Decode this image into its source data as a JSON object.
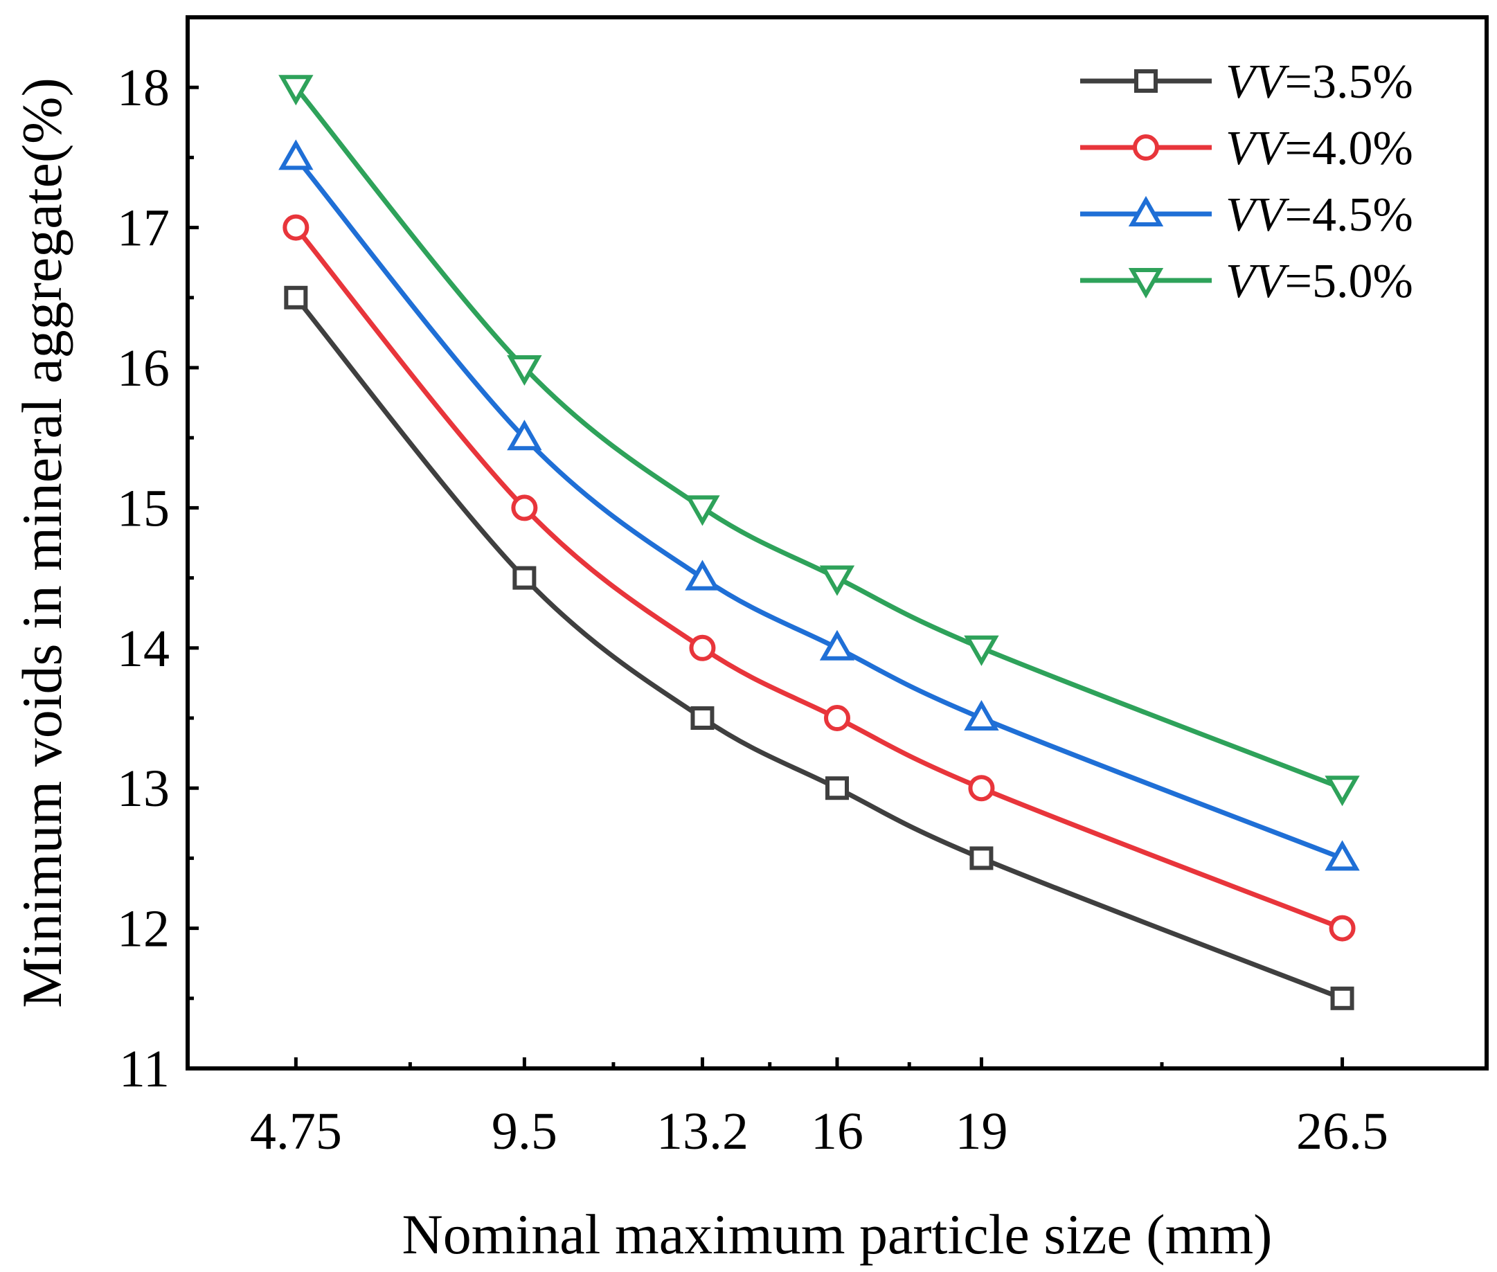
{
  "chart_data": {
    "type": "line",
    "title": "",
    "xlabel": "Nominal maximum particle size (mm)",
    "ylabel": "Minimum voids in mineral aggregate(%)",
    "x": [
      4.75,
      9.5,
      13.2,
      16,
      19,
      26.5
    ],
    "x_tick_labels": [
      "4.75",
      "9.5",
      "13.2",
      "16",
      "19",
      "26.5"
    ],
    "xlim": [
      2.5,
      29.5
    ],
    "ylim": [
      11,
      18.5
    ],
    "y_ticks": [
      11,
      12,
      13,
      14,
      15,
      16,
      17,
      18
    ],
    "y_tick_labels": [
      "11",
      "12",
      "13",
      "14",
      "15",
      "16",
      "17",
      "18"
    ],
    "grid": false,
    "legend_position": "top-right",
    "series": [
      {
        "name": "VV=3.5%",
        "name_prefix": "VV",
        "name_suffix": "=3.5%",
        "marker": "square",
        "color": "#3f3f3f",
        "values": [
          16.5,
          14.5,
          13.5,
          13.0,
          12.5,
          11.5
        ]
      },
      {
        "name": "VV=4.0%",
        "name_prefix": "VV",
        "name_suffix": "=4.0%",
        "marker": "circle",
        "color": "#e8353b",
        "values": [
          17.0,
          15.0,
          14.0,
          13.5,
          13.0,
          12.0
        ]
      },
      {
        "name": "VV=4.5%",
        "name_prefix": "VV",
        "name_suffix": "=4.5%",
        "marker": "triangle-up",
        "color": "#1f6fd6",
        "values": [
          17.5,
          15.5,
          14.5,
          14.0,
          13.5,
          12.5
        ]
      },
      {
        "name": "VV=5.0%",
        "name_prefix": "VV",
        "name_suffix": "=5.0%",
        "marker": "triangle-down",
        "color": "#2ea25a",
        "values": [
          18.0,
          16.0,
          15.0,
          14.5,
          14.0,
          13.0
        ]
      }
    ]
  }
}
